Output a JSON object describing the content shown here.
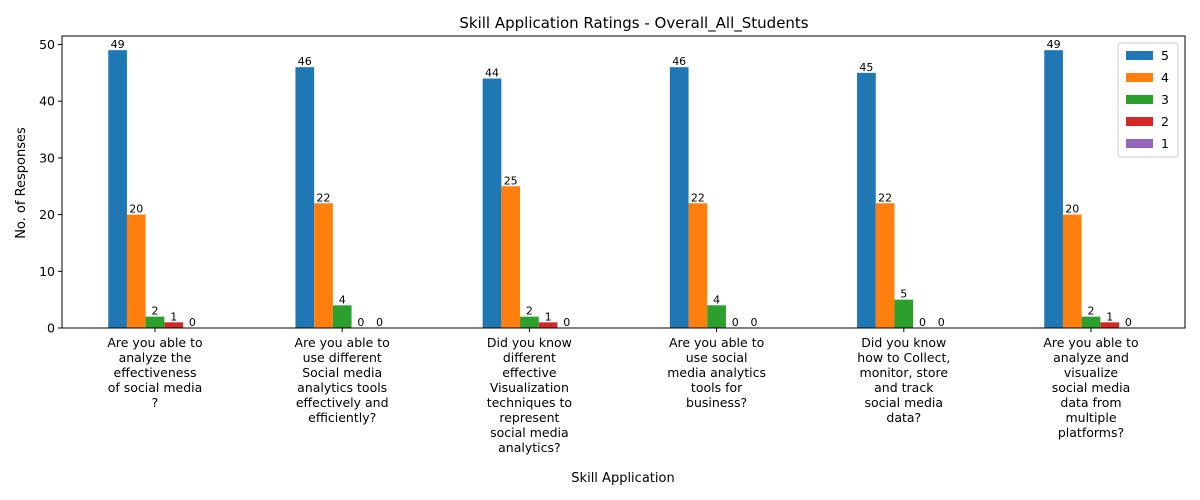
{
  "chart_data": {
    "type": "bar",
    "title": "Skill Application Ratings - Overall_All_Students",
    "xlabel": "Skill Application",
    "ylabel": "No. of Responses",
    "ylim": [
      0,
      51.5
    ],
    "yticks": [
      0,
      10,
      20,
      30,
      40,
      50
    ],
    "grid": false,
    "legend_position": "top-right",
    "categories": [
      [
        "Are you able to",
        "analyze the",
        "effectiveness",
        "of social media",
        "?"
      ],
      [
        "Are you able to",
        "use different",
        "Social media",
        "analytics tools",
        "effectively and",
        "efficiently?"
      ],
      [
        "Did you know",
        "different",
        "effective",
        "Visualization",
        "techniques to",
        "represent",
        "social media",
        "analytics?"
      ],
      [
        "Are you able to",
        "use social",
        "media analytics",
        "tools for",
        "business?"
      ],
      [
        "Did you know",
        "how to Collect,",
        "monitor, store",
        "and track",
        "social media",
        "data?"
      ],
      [
        "Are you able to",
        "analyze and",
        "visualize",
        "social media",
        "data from",
        "multiple",
        "platforms?"
      ]
    ],
    "series": [
      {
        "name": "5",
        "color": "#1f77b4",
        "values": [
          49,
          46,
          44,
          46,
          45,
          49
        ]
      },
      {
        "name": "4",
        "color": "#ff7f0e",
        "values": [
          20,
          22,
          25,
          22,
          22,
          20
        ]
      },
      {
        "name": "3",
        "color": "#2ca02c",
        "values": [
          2,
          4,
          2,
          4,
          5,
          2
        ]
      },
      {
        "name": "2",
        "color": "#d62728",
        "values": [
          1,
          0,
          1,
          0,
          0,
          1
        ]
      },
      {
        "name": "1",
        "color": "#9467bd",
        "values": [
          0,
          0,
          0,
          0,
          0,
          0
        ]
      }
    ]
  }
}
